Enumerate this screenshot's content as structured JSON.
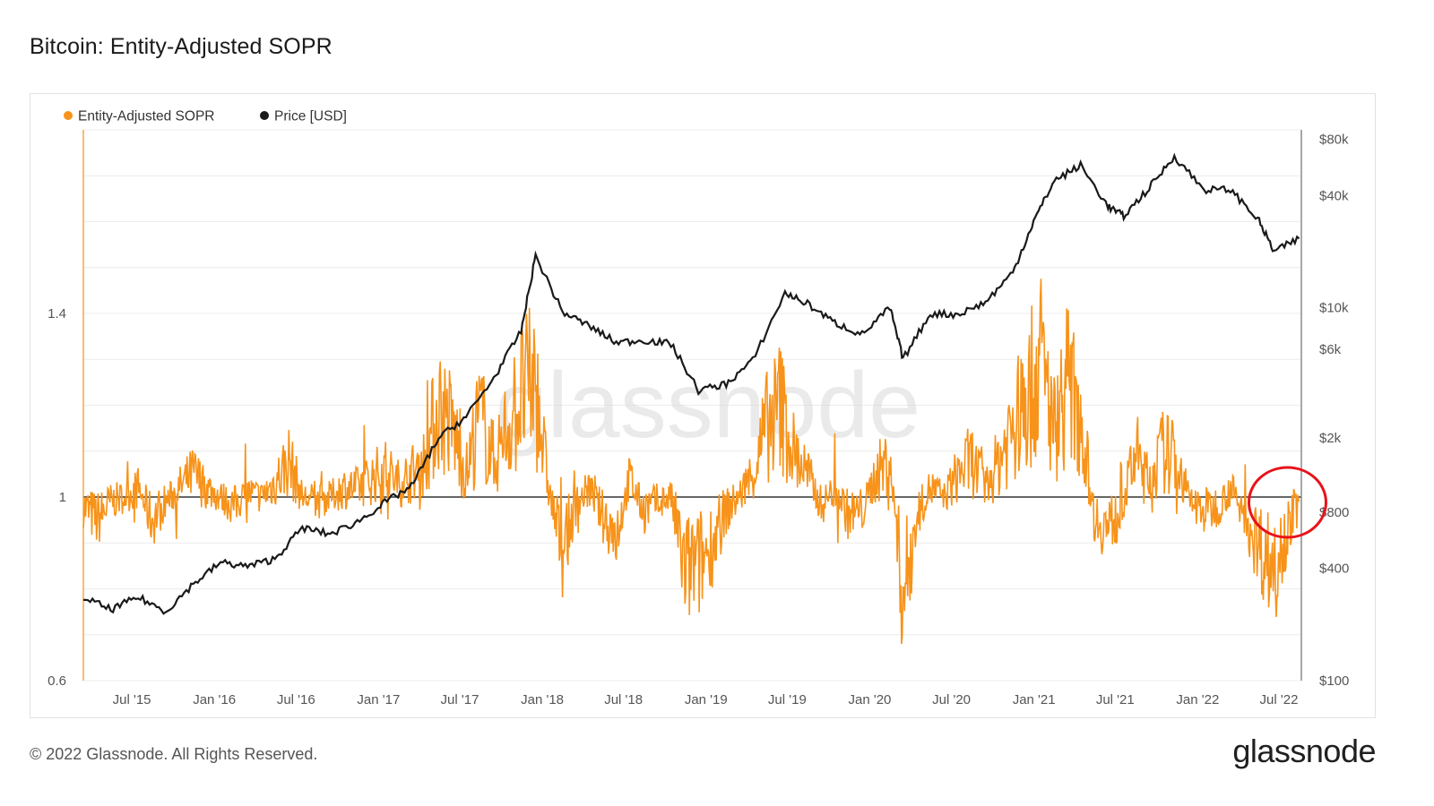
{
  "header": {
    "title": "Bitcoin: Entity-Adjusted SOPR"
  },
  "footer": {
    "copyright": "© 2022 Glassnode. All Rights Reserved.",
    "logo": "glassnode"
  },
  "watermark": "glassnode",
  "colors": {
    "sopr": "#f7931a",
    "price": "#1a1a1a",
    "highlight": "#e8121a",
    "baseline": "#333333",
    "grid": "#ececec"
  },
  "chart_data": {
    "type": "line",
    "title": "Bitcoin: Entity-Adjusted SOPR",
    "legend": {
      "placement": "top-left",
      "entries": [
        "Entity-Adjusted SOPR",
        "Price [USD]"
      ]
    },
    "grid": true,
    "x_ticks": [
      "Jul '15",
      "Jan '16",
      "Jul '16",
      "Jan '17",
      "Jul '17",
      "Jan '18",
      "Jul '18",
      "Jan '19",
      "Jul '19",
      "Jan '20",
      "Jul '20",
      "Jan '21",
      "Jul '21",
      "Jan '22",
      "Jul '22"
    ],
    "x_range": [
      "2015-03-15",
      "2022-08-20"
    ],
    "y_left": {
      "label": "",
      "ticks": [
        "1.4",
        "1",
        "0.6"
      ],
      "ylim": [
        0.6,
        1.8
      ],
      "baseline": 1.0
    },
    "y_right": {
      "label": "",
      "scale": "log",
      "ticks": [
        "$80k",
        "$40k",
        "$10k",
        "$6k",
        "$2k",
        "$800",
        "$400",
        "$100"
      ],
      "ylim": [
        100,
        90000
      ]
    },
    "series": [
      {
        "name": "Entity-Adjusted SOPR",
        "axis": "left",
        "x": [
          "2015-03-15",
          "2015-04-15",
          "2015-05-15",
          "2015-06-15",
          "2015-07-15",
          "2015-08-15",
          "2015-09-15",
          "2015-10-15",
          "2015-11-15",
          "2015-12-15",
          "2016-01-15",
          "2016-02-15",
          "2016-03-15",
          "2016-04-15",
          "2016-05-15",
          "2016-06-15",
          "2016-07-15",
          "2016-08-15",
          "2016-09-15",
          "2016-10-15",
          "2016-11-15",
          "2016-12-15",
          "2017-01-15",
          "2017-02-15",
          "2017-03-15",
          "2017-04-15",
          "2017-05-15",
          "2017-06-15",
          "2017-07-15",
          "2017-08-15",
          "2017-09-15",
          "2017-10-15",
          "2017-11-15",
          "2017-12-15",
          "2018-01-15",
          "2018-02-15",
          "2018-03-15",
          "2018-04-15",
          "2018-05-15",
          "2018-06-15",
          "2018-07-15",
          "2018-08-15",
          "2018-09-15",
          "2018-10-15",
          "2018-11-15",
          "2018-12-15",
          "2019-01-15",
          "2019-02-15",
          "2019-03-15",
          "2019-04-15",
          "2019-05-15",
          "2019-06-15",
          "2019-07-15",
          "2019-08-15",
          "2019-09-15",
          "2019-10-15",
          "2019-11-15",
          "2019-12-15",
          "2020-01-15",
          "2020-02-15",
          "2020-03-15",
          "2020-04-15",
          "2020-05-15",
          "2020-06-15",
          "2020-07-15",
          "2020-08-15",
          "2020-09-15",
          "2020-10-15",
          "2020-11-15",
          "2020-12-15",
          "2021-01-15",
          "2021-02-15",
          "2021-03-15",
          "2021-04-15",
          "2021-05-15",
          "2021-06-15",
          "2021-07-15",
          "2021-08-15",
          "2021-09-15",
          "2021-10-15",
          "2021-11-15",
          "2021-12-15",
          "2022-01-15",
          "2022-02-15",
          "2022-03-15",
          "2022-04-15",
          "2022-05-15",
          "2022-06-15",
          "2022-07-15",
          "2022-08-15"
        ],
        "y": [
          0.98,
          0.95,
          0.99,
          1.0,
          1.02,
          0.95,
          0.99,
          1.02,
          1.05,
          1.02,
          1.0,
          0.98,
          1.01,
          1.0,
          1.03,
          1.08,
          1.0,
          0.99,
          1.0,
          1.02,
          1.02,
          1.04,
          1.06,
          1.03,
          1.05,
          1.08,
          1.2,
          1.15,
          1.05,
          1.18,
          1.08,
          1.15,
          1.22,
          1.25,
          1.02,
          0.88,
          0.98,
          1.02,
          0.96,
          0.92,
          1.04,
          0.97,
          0.99,
          1.0,
          0.84,
          0.85,
          0.9,
          0.97,
          1.0,
          1.05,
          1.15,
          1.2,
          1.1,
          1.05,
          0.98,
          1.02,
          0.96,
          0.97,
          1.05,
          1.08,
          0.78,
          0.96,
          1.02,
          1.0,
          1.05,
          1.08,
          1.02,
          1.08,
          1.16,
          1.2,
          1.3,
          1.15,
          1.25,
          1.18,
          0.96,
          0.93,
          0.97,
          1.1,
          1.03,
          1.1,
          1.08,
          0.99,
          0.97,
          0.98,
          1.02,
          0.96,
          0.9,
          0.85,
          0.92,
          0.99
        ]
      },
      {
        "name": "Price [USD]",
        "axis": "right",
        "x": [
          "2015-03-15",
          "2015-05-15",
          "2015-07-15",
          "2015-09-15",
          "2015-11-15",
          "2016-01-15",
          "2016-03-15",
          "2016-05-15",
          "2016-07-15",
          "2016-09-15",
          "2016-11-15",
          "2017-01-15",
          "2017-03-15",
          "2017-05-15",
          "2017-07-15",
          "2017-09-15",
          "2017-11-15",
          "2017-12-17",
          "2018-02-15",
          "2018-04-15",
          "2018-06-15",
          "2018-08-15",
          "2018-10-15",
          "2018-12-15",
          "2019-02-15",
          "2019-04-15",
          "2019-06-26",
          "2019-08-15",
          "2019-10-15",
          "2019-12-15",
          "2020-02-15",
          "2020-03-15",
          "2020-05-15",
          "2020-07-15",
          "2020-09-15",
          "2020-11-15",
          "2020-12-31",
          "2021-02-15",
          "2021-04-15",
          "2021-06-15",
          "2021-07-20",
          "2021-09-15",
          "2021-11-10",
          "2022-01-15",
          "2022-03-15",
          "2022-05-15",
          "2022-06-20",
          "2022-08-15"
        ],
        "y": [
          280,
          240,
          280,
          235,
          330,
          430,
          410,
          450,
          660,
          610,
          710,
          900,
          1100,
          2000,
          2600,
          4200,
          7500,
          19000,
          9500,
          8000,
          6500,
          6700,
          6400,
          3600,
          3900,
          5200,
          12000,
          10500,
          8300,
          7200,
          10000,
          5300,
          9300,
          9200,
          10700,
          15500,
          29000,
          48000,
          58000,
          35000,
          31000,
          44000,
          65000,
          43000,
          43000,
          30000,
          20000,
          23500
        ]
      }
    ]
  }
}
